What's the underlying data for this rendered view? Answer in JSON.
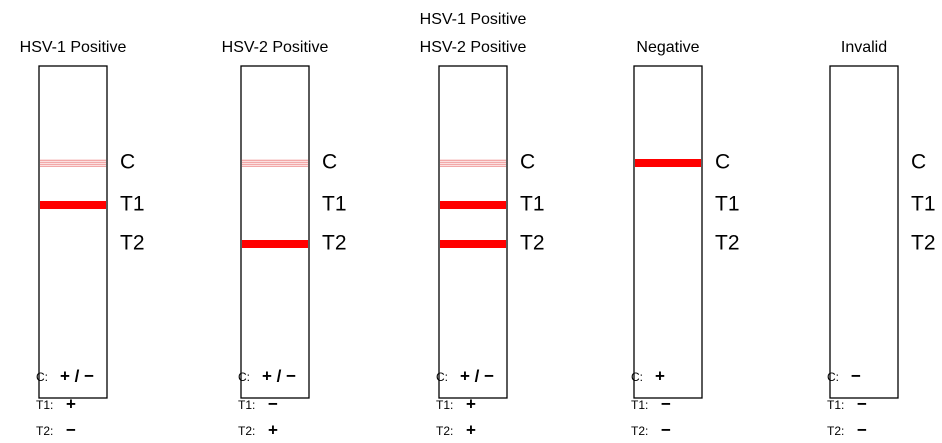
{
  "strips": [
    {
      "title": [
        "HSV-1 Positive"
      ],
      "bands": [
        {
          "label": "C",
          "state": "faint"
        },
        {
          "label": "T1",
          "state": "solid"
        },
        {
          "label": "T2",
          "state": "none"
        }
      ],
      "results": [
        {
          "label": "C:",
          "value": "+ / −"
        },
        {
          "label": "T1:",
          "value": "+"
        },
        {
          "label": "T2:",
          "value": "−"
        }
      ]
    },
    {
      "title": [
        "HSV-2 Positive"
      ],
      "bands": [
        {
          "label": "C",
          "state": "faint"
        },
        {
          "label": "T1",
          "state": "none"
        },
        {
          "label": "T2",
          "state": "solid"
        }
      ],
      "results": [
        {
          "label": "C:",
          "value": "+ / −"
        },
        {
          "label": "T1:",
          "value": "−"
        },
        {
          "label": "T2:",
          "value": "+"
        }
      ]
    },
    {
      "title": [
        "HSV-1 Positive",
        "HSV-2 Positive"
      ],
      "bands": [
        {
          "label": "C",
          "state": "faint"
        },
        {
          "label": "T1",
          "state": "solid"
        },
        {
          "label": "T2",
          "state": "solid"
        }
      ],
      "results": [
        {
          "label": "C:",
          "value": "+ / −"
        },
        {
          "label": "T1:",
          "value": "+"
        },
        {
          "label": "T2:",
          "value": "+"
        }
      ]
    },
    {
      "title": [
        "Negative"
      ],
      "bands": [
        {
          "label": "C",
          "state": "solid"
        },
        {
          "label": "T1",
          "state": "none"
        },
        {
          "label": "T2",
          "state": "none"
        }
      ],
      "results": [
        {
          "label": "C:",
          "value": "+"
        },
        {
          "label": "T1:",
          "value": "−"
        },
        {
          "label": "T2:",
          "value": "−"
        }
      ]
    },
    {
      "title": [
        "Invalid"
      ],
      "bands": [
        {
          "label": "C",
          "state": "none"
        },
        {
          "label": "T1",
          "state": "none"
        },
        {
          "label": "T2",
          "state": "none"
        }
      ],
      "results": [
        {
          "label": "C:",
          "value": "−"
        },
        {
          "label": "T1:",
          "value": "−"
        },
        {
          "label": "T2:",
          "value": "−"
        }
      ]
    }
  ]
}
